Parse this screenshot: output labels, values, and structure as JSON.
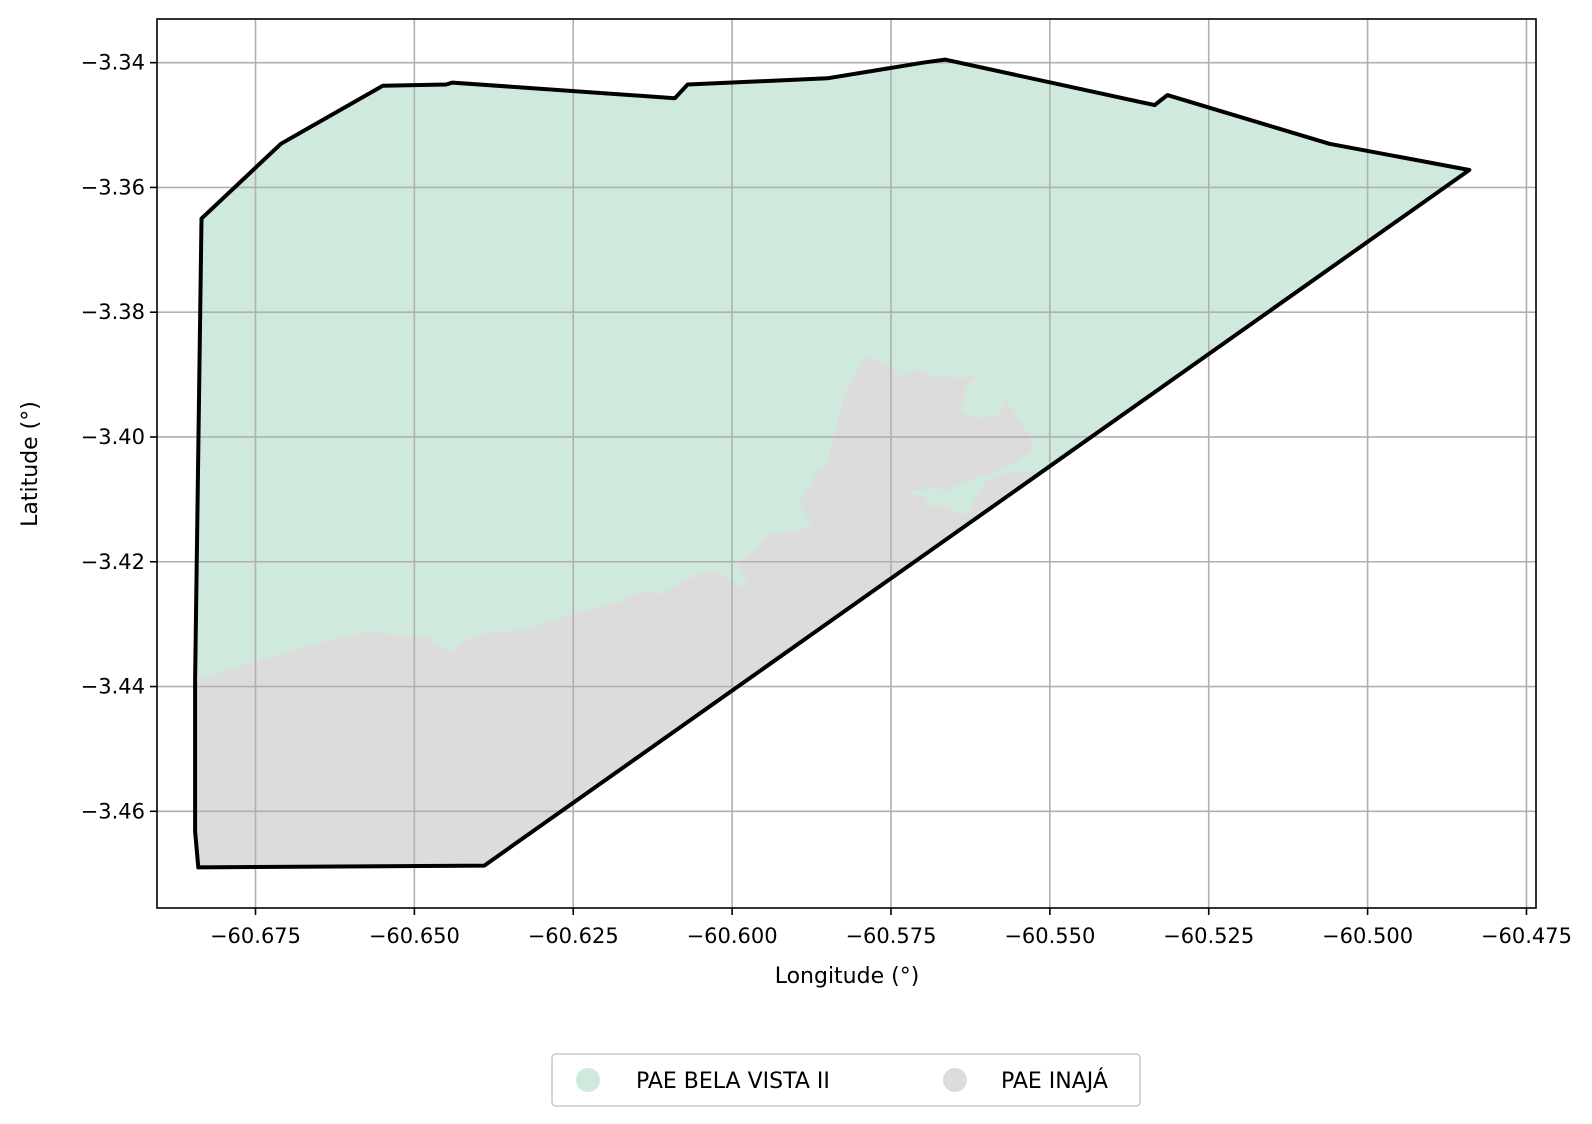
{
  "chart_data": {
    "type": "map",
    "xlabel": "Longitude (°)",
    "ylabel": "Latitude (°)",
    "xlim": [
      -60.6905,
      -60.4735
    ],
    "ylim": [
      -3.4755,
      -3.333
    ],
    "grid": true,
    "x_ticks": [
      {
        "value": -60.675,
        "label": "−60.675"
      },
      {
        "value": -60.65,
        "label": "−60.650"
      },
      {
        "value": -60.625,
        "label": "−60.625"
      },
      {
        "value": -60.6,
        "label": "−60.600"
      },
      {
        "value": -60.575,
        "label": "−60.575"
      },
      {
        "value": -60.55,
        "label": "−60.550"
      },
      {
        "value": -60.525,
        "label": "−60.525"
      },
      {
        "value": -60.5,
        "label": "−60.500"
      },
      {
        "value": -60.475,
        "label": "−60.475"
      }
    ],
    "y_ticks": [
      {
        "value": -3.34,
        "label": "−3.34"
      },
      {
        "value": -3.36,
        "label": "−3.36"
      },
      {
        "value": -3.38,
        "label": "−3.38"
      },
      {
        "value": -3.4,
        "label": "−3.40"
      },
      {
        "value": -3.42,
        "label": "−3.42"
      },
      {
        "value": -3.44,
        "label": "−3.44"
      },
      {
        "value": -3.46,
        "label": "−3.46"
      }
    ],
    "regions": [
      {
        "name": "PAE BELA VISTA II",
        "color": "#cfeadd"
      },
      {
        "name": "PAE INAJÁ",
        "color": "#dcdcdc"
      }
    ],
    "legend_position": "bottom-center",
    "outline": [
      [
        -60.6835,
        -3.365
      ],
      [
        -60.671,
        -3.353
      ],
      [
        -60.655,
        -3.3437
      ],
      [
        -60.645,
        -3.3435
      ],
      [
        -60.644,
        -3.3432
      ],
      [
        -60.609,
        -3.3457
      ],
      [
        -60.607,
        -3.3435
      ],
      [
        -60.585,
        -3.3425
      ],
      [
        -60.57,
        -3.34
      ],
      [
        -60.5665,
        -3.3395
      ],
      [
        -60.5335,
        -3.3468
      ],
      [
        -60.5315,
        -3.3452
      ],
      [
        -60.506,
        -3.353
      ],
      [
        -60.484,
        -3.3572
      ],
      [
        -60.639,
        -3.4687
      ],
      [
        -60.684,
        -3.469
      ],
      [
        -60.6845,
        -3.4632
      ],
      [
        -60.6845,
        -3.439
      ]
    ],
    "inaja_boundary": [
      [
        -60.6845,
        -3.439
      ],
      [
        -60.675,
        -3.436
      ],
      [
        -60.665,
        -3.433
      ],
      [
        -60.657,
        -3.4312
      ],
      [
        -60.648,
        -3.4322
      ],
      [
        -60.644,
        -3.4345
      ],
      [
        -60.642,
        -3.4325
      ],
      [
        -60.638,
        -3.4312
      ],
      [
        -60.633,
        -3.431
      ],
      [
        -60.63,
        -3.43
      ],
      [
        -60.627,
        -3.429
      ],
      [
        -60.623,
        -3.4278
      ],
      [
        -60.618,
        -3.4265
      ],
      [
        -60.614,
        -3.4247
      ],
      [
        -60.611,
        -3.4252
      ],
      [
        -60.608,
        -3.4232
      ],
      [
        -60.604,
        -3.4215
      ],
      [
        -60.601,
        -3.4222
      ],
      [
        -60.599,
        -3.424
      ],
      [
        -60.5975,
        -3.4232
      ],
      [
        -60.5995,
        -3.42
      ],
      [
        -60.598,
        -3.4195
      ],
      [
        -60.596,
        -3.4175
      ],
      [
        -60.594,
        -3.4155
      ],
      [
        -60.5915,
        -3.415
      ],
      [
        -60.589,
        -3.415
      ],
      [
        -60.5875,
        -3.414
      ],
      [
        -60.5895,
        -3.4105
      ],
      [
        -60.588,
        -3.4085
      ],
      [
        -60.5865,
        -3.405
      ],
      [
        -60.585,
        -3.4045
      ],
      [
        -60.584,
        -3.4
      ],
      [
        -60.583,
        -3.396
      ],
      [
        -60.582,
        -3.3925
      ],
      [
        -60.579,
        -3.387
      ],
      [
        -60.577,
        -3.3878
      ],
      [
        -60.575,
        -3.389
      ],
      [
        -60.573,
        -3.3905
      ],
      [
        -60.571,
        -3.389
      ],
      [
        -60.568,
        -3.3903
      ],
      [
        -60.564,
        -3.3905
      ],
      [
        -60.561,
        -3.39
      ],
      [
        -60.563,
        -3.3918
      ],
      [
        -60.564,
        -3.396
      ],
      [
        -60.561,
        -3.397
      ],
      [
        -60.558,
        -3.3965
      ],
      [
        -60.557,
        -3.394
      ],
      [
        -60.555,
        -3.397
      ],
      [
        -60.553,
        -3.4
      ],
      [
        -60.5525,
        -3.402
      ],
      [
        -60.556,
        -3.4045
      ],
      [
        -60.56,
        -3.406
      ],
      [
        -60.564,
        -3.4075
      ],
      [
        -60.566,
        -3.4085
      ],
      [
        -60.569,
        -3.4082
      ],
      [
        -60.572,
        -3.409
      ],
      [
        -60.57,
        -3.4095
      ],
      [
        -60.569,
        -3.41
      ],
      [
        -60.57,
        -3.411
      ],
      [
        -60.566,
        -3.411
      ],
      [
        -60.565,
        -3.412
      ],
      [
        -60.563,
        -3.4125
      ],
      [
        -60.5615,
        -3.4092
      ],
      [
        -60.56,
        -3.407
      ],
      [
        -60.557,
        -3.4058
      ],
      [
        -60.552,
        -3.4055
      ]
    ]
  },
  "legend": {
    "items": [
      {
        "label": "PAE BELA VISTA II",
        "color": "#cfeadd"
      },
      {
        "label": "PAE INAJÁ",
        "color": "#dcdcdc"
      }
    ]
  }
}
